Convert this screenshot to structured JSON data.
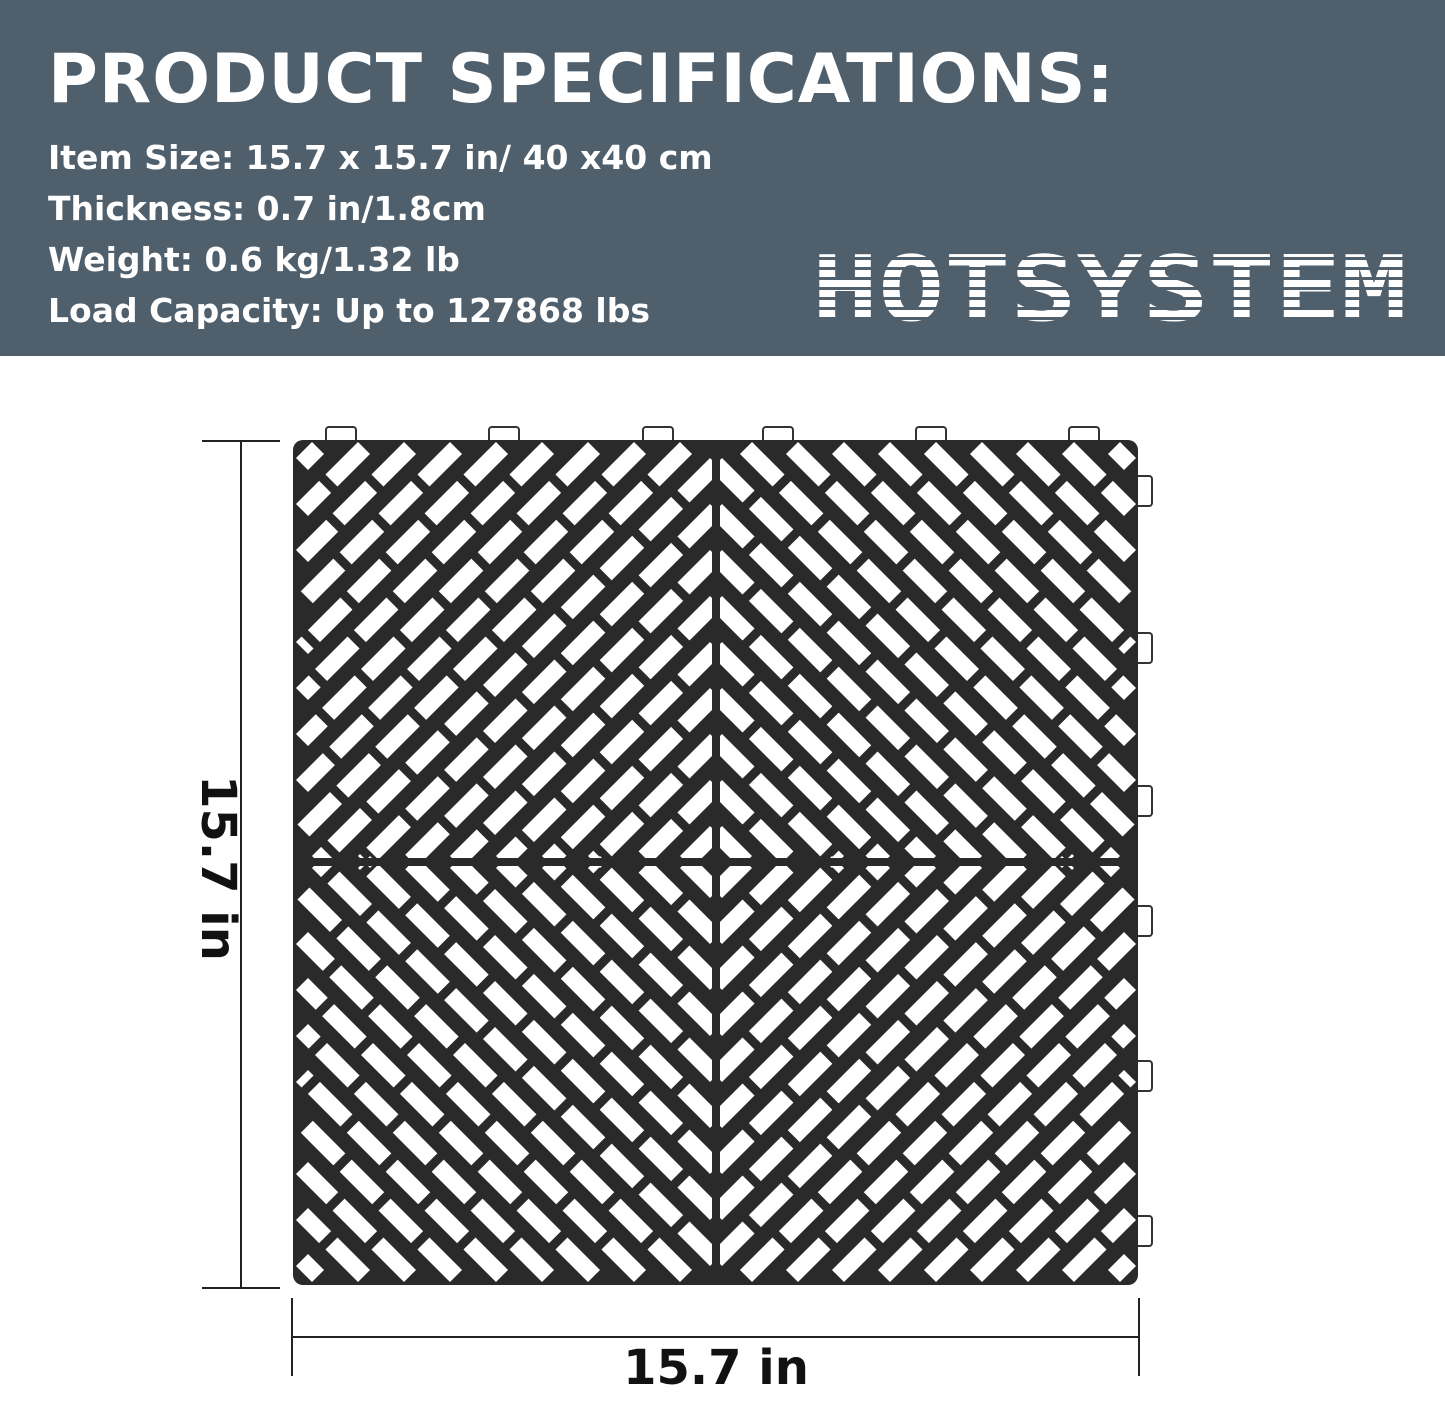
{
  "header": {
    "title": "PRODUCT SPECIFICATIONS:",
    "specs": [
      "Item Size: 15.7 x 15.7 in/ 40 x40 cm",
      "Thickness:  0.7 in/1.8cm",
      "Weight:  0.6 kg/1.32 lb",
      "Load Capacity: Up to 127868 lbs"
    ],
    "brand": "HOTSYSTEM"
  },
  "dimensions": {
    "height_label": "15.7 in",
    "width_label": "15.7 in"
  },
  "colors": {
    "banner": "#4f5f6c",
    "tile": "#2a2a2a",
    "text": "#ffffff"
  }
}
